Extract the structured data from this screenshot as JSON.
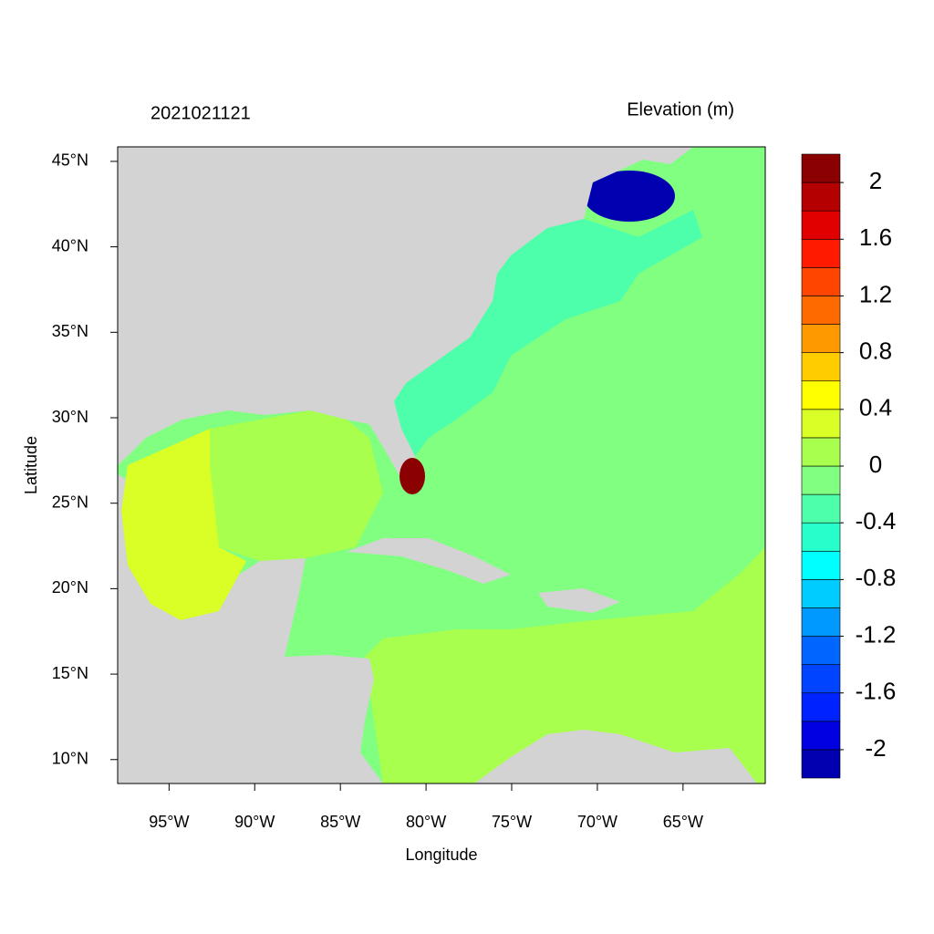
{
  "chart_data": {
    "type": "map",
    "title": "2021021121",
    "legend_title": "Elevation (m)",
    "x_label": "Longitude",
    "y_label": "Latitude",
    "xlim": [
      -98,
      -60.2
    ],
    "ylim": [
      8.6,
      45.85
    ],
    "xticks": [
      {
        "value": -95,
        "label": "95°W"
      },
      {
        "value": -90,
        "label": "90°W"
      },
      {
        "value": -85,
        "label": "85°W"
      },
      {
        "value": -80,
        "label": "80°W"
      },
      {
        "value": -75,
        "label": "75°W"
      },
      {
        "value": -70,
        "label": "70°W"
      },
      {
        "value": -65,
        "label": "65°W"
      }
    ],
    "yticks": [
      {
        "value": 10,
        "label": "10°N"
      },
      {
        "value": 15,
        "label": "15°N"
      },
      {
        "value": 20,
        "label": "20°N"
      },
      {
        "value": 25,
        "label": "25°N"
      },
      {
        "value": 30,
        "label": "30°N"
      },
      {
        "value": 35,
        "label": "35°N"
      },
      {
        "value": 40,
        "label": "40°N"
      },
      {
        "value": 45,
        "label": "45°N"
      }
    ],
    "colorbar": {
      "lim": [
        -2.2,
        2.2
      ],
      "ticks": [
        -2,
        -1.6,
        -1.2,
        -0.8,
        -0.4,
        0,
        0.4,
        0.8,
        1.2,
        1.6,
        2
      ],
      "colors": [
        "#0000b0",
        "#0000e0",
        "#0022ff",
        "#0044ff",
        "#0066ff",
        "#0099ff",
        "#00ccff",
        "#00ffff",
        "#26ffcc",
        "#4dffaa",
        "#80ff80",
        "#a8ff4d",
        "#d9ff26",
        "#ffff00",
        "#ffcc00",
        "#ff9900",
        "#ff6a00",
        "#ff4500",
        "#ff1a00",
        "#e00000",
        "#b40000",
        "#8b0000"
      ]
    }
  }
}
